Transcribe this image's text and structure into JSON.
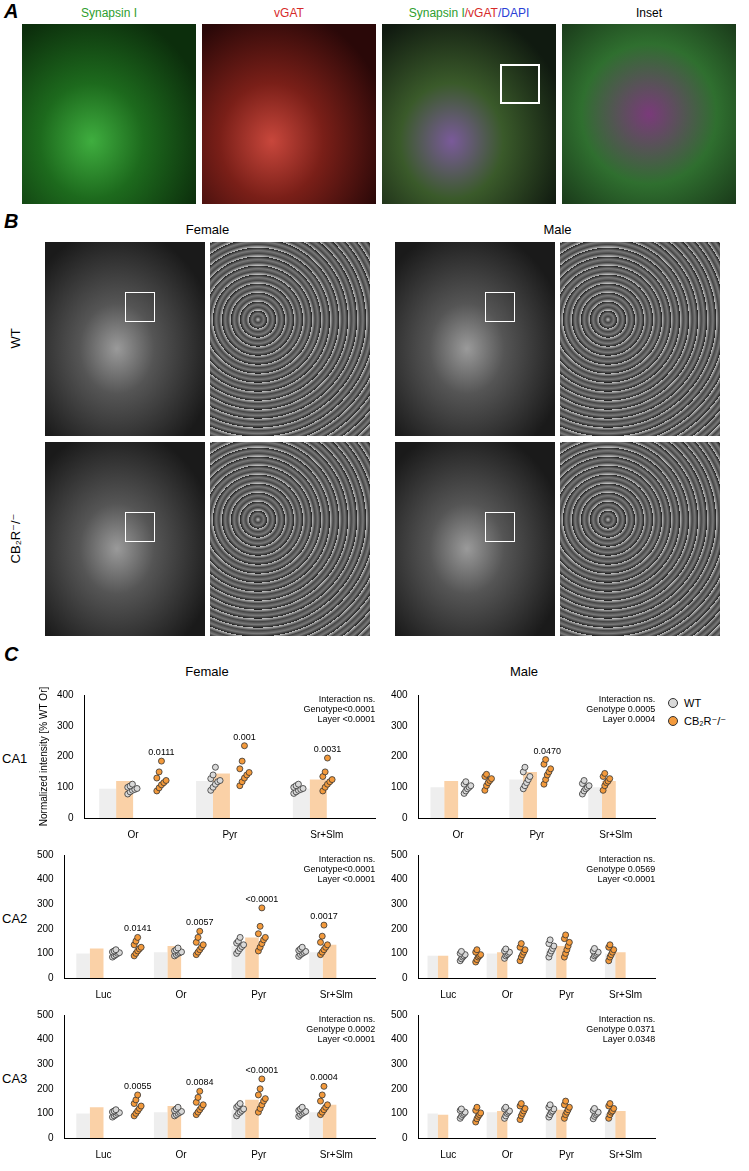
{
  "panel_a": {
    "label": "A",
    "images": [
      [
        {
          "text": "Synapsin I",
          "color": "#2e9e2e"
        }
      ],
      [
        {
          "text": "vGAT",
          "color": "#d62a2a"
        }
      ],
      [
        {
          "text": "Synapsin I",
          "color": "#2e9e2e"
        },
        {
          "text": "/vGAT",
          "color": "#d62a2a"
        },
        {
          "text": "/DAPI",
          "color": "#2a3fd6"
        }
      ],
      [
        {
          "text": "Inset",
          "color": "#000000"
        }
      ]
    ]
  },
  "panel_b": {
    "label": "B",
    "columns": [
      "Female",
      "Male"
    ],
    "rows": [
      "WT",
      "CB₂R⁻/⁻"
    ]
  },
  "panel_c": {
    "label": "C",
    "columns": [
      "Female",
      "Male"
    ],
    "rows": [
      "CA1",
      "CA2",
      "CA3"
    ],
    "y_label": "Normalized intensity [% WT Or]"
  },
  "chart_data": [
    {
      "type": "bar",
      "categories": [
        "Or",
        "Pyr",
        "Sr+Slm"
      ],
      "ylim": [
        0,
        400
      ],
      "yticks": [
        0,
        100,
        200,
        300,
        400
      ],
      "grid": false,
      "annotations": [
        "Interaction ns.",
        "Genotype<0.0001",
        "Layer <0.0001"
      ],
      "p_values": [
        "0.0111",
        "0.001",
        "0.0031"
      ],
      "series": [
        {
          "name": "WT",
          "color": "#d9d9d9",
          "marker": "circle",
          "values": [
            95,
            120,
            95
          ],
          "points": [
            [
              78,
              85,
              90,
              93,
              96,
              100,
              104,
              110
            ],
            [
              90,
              100,
              110,
              118,
              122,
              128,
              140,
              165
            ],
            [
              80,
              85,
              90,
              93,
              96,
              100,
              105,
              110
            ]
          ]
        },
        {
          "name": "CB₂R⁻/⁻",
          "color": "#f39a3c",
          "marker": "circle",
          "values": [
            120,
            145,
            125
          ],
          "points": [
            [
              88,
              98,
              108,
              115,
              122,
              130,
              150,
              185
            ],
            [
              105,
              118,
              130,
              140,
              148,
              160,
              185,
              235
            ],
            [
              88,
              100,
              110,
              118,
              125,
              135,
              150,
              195
            ]
          ]
        }
      ]
    },
    {
      "type": "bar",
      "categories": [
        "Or",
        "Pyr",
        "Sr+Slm"
      ],
      "ylim": [
        0,
        400
      ],
      "yticks": [
        0,
        100,
        200,
        300,
        400
      ],
      "grid": false,
      "legend": "right",
      "annotations": [
        "Interaction ns.",
        "Genotype 0.0005",
        "Layer 0.0004"
      ],
      "p_values": [
        null,
        "0.0470",
        null
      ],
      "series": [
        {
          "name": "WT",
          "color": "#d9d9d9",
          "marker": "circle",
          "values": [
            100,
            125,
            100
          ],
          "points": [
            [
              80,
              88,
              95,
              100,
              105,
              110,
              118
            ],
            [
              95,
              105,
              115,
              125,
              135,
              150,
              165
            ],
            [
              78,
              88,
              95,
              100,
              105,
              112,
              122
            ]
          ]
        },
        {
          "name": "CB₂R⁻/⁻",
          "color": "#f39a3c",
          "marker": "circle",
          "values": [
            120,
            150,
            120
          ],
          "points": [
            [
              90,
              105,
              115,
              122,
              128,
              135,
              142
            ],
            [
              110,
              125,
              140,
              150,
              160,
              175,
              190
            ],
            [
              90,
              105,
              115,
              120,
              128,
              135,
              145
            ]
          ]
        }
      ]
    },
    {
      "type": "bar",
      "categories": [
        "Luc",
        "Or",
        "Pyr",
        "Sr+Slm"
      ],
      "ylim": [
        0,
        500
      ],
      "yticks": [
        0,
        100,
        200,
        300,
        400,
        500
      ],
      "grid": false,
      "annotations": [
        "Interaction ns.",
        "Genotype<0.0001",
        "Layer <0.0001"
      ],
      "p_values": [
        "0.0141",
        "0.0057",
        "<0.0001",
        "0.0017"
      ],
      "series": [
        {
          "name": "WT",
          "color": "#d9d9d9",
          "marker": "circle",
          "values": [
            100,
            105,
            130,
            105
          ],
          "points": [
            [
              85,
              90,
              95,
              100,
              103,
              106,
              110,
              115
            ],
            [
              90,
              95,
              100,
              103,
              106,
              110,
              115,
              122
            ],
            [
              100,
              110,
              120,
              128,
              135,
              142,
              150,
              165
            ],
            [
              88,
              95,
              100,
              104,
              108,
              112,
              118,
              125
            ]
          ]
        },
        {
          "name": "CB₂R⁻/⁻",
          "color": "#f39a3c",
          "marker": "circle",
          "values": [
            120,
            130,
            165,
            135
          ],
          "points": [
            [
              90,
              100,
              110,
              118,
              125,
              135,
              150,
              165
            ],
            [
              95,
              105,
              115,
              125,
              135,
              145,
              165,
              190
            ],
            [
              110,
              125,
              140,
              155,
              165,
              180,
              210,
              285
            ],
            [
              95,
              105,
              115,
              125,
              135,
              145,
              170,
              215
            ]
          ]
        }
      ]
    },
    {
      "type": "bar",
      "categories": [
        "Luc",
        "Or",
        "Pyr",
        "Sr+Slm"
      ],
      "ylim": [
        0,
        500
      ],
      "yticks": [
        0,
        100,
        200,
        300,
        400,
        500
      ],
      "grid": false,
      "annotations": [
        "Interaction ns.",
        "Genotype 0.0569",
        "Layer <0.0001"
      ],
      "p_values": [
        null,
        null,
        null,
        null
      ],
      "series": [
        {
          "name": "WT",
          "color": "#d9d9d9",
          "marker": "circle",
          "values": [
            90,
            100,
            120,
            100
          ],
          "points": [
            [
              70,
              78,
              85,
              90,
              95,
              100,
              108
            ],
            [
              80,
              90,
              95,
              100,
              105,
              110,
              118
            ],
            [
              85,
              100,
              110,
              120,
              130,
              140,
              155
            ],
            [
              80,
              90,
              95,
              100,
              105,
              110,
              120
            ]
          ]
        },
        {
          "name": "CB₂R⁻/⁻",
          "color": "#f39a3c",
          "marker": "circle",
          "values": [
            90,
            105,
            130,
            105
          ],
          "points": [
            [
              65,
              75,
              85,
              90,
              95,
              105,
              115
            ],
            [
              70,
              85,
              95,
              105,
              115,
              125,
              140
            ],
            [
              85,
              100,
              115,
              130,
              145,
              160,
              175
            ],
            [
              70,
              85,
              95,
              105,
              115,
              125,
              135
            ]
          ]
        }
      ]
    },
    {
      "type": "bar",
      "categories": [
        "Luc",
        "Or",
        "Pyr",
        "Sr+Slm"
      ],
      "ylim": [
        0,
        500
      ],
      "yticks": [
        0,
        100,
        200,
        300,
        400,
        500
      ],
      "grid": false,
      "annotations": [
        "Interaction ns.",
        "Genotype 0.0002",
        "Layer <0.0001"
      ],
      "p_values": [
        "0.0055",
        "0.0084",
        "<0.0001",
        "0.0004"
      ],
      "series": [
        {
          "name": "WT",
          "color": "#d9d9d9",
          "marker": "circle",
          "values": [
            100,
            105,
            115,
            105
          ],
          "points": [
            [
              85,
              90,
              95,
              100,
              103,
              106,
              110,
              115
            ],
            [
              90,
              95,
              100,
              104,
              108,
              112,
              118,
              125
            ],
            [
              90,
              100,
              105,
              112,
              118,
              125,
              132,
              140
            ],
            [
              88,
              95,
              100,
              104,
              108,
              112,
              118,
              125
            ]
          ]
        },
        {
          "name": "CB₂R⁻/⁻",
          "color": "#f39a3c",
          "marker": "circle",
          "values": [
            125,
            130,
            155,
            135
          ],
          "points": [
            [
              90,
              100,
              110,
              120,
              130,
              140,
              155,
              175
            ],
            [
              95,
              105,
              115,
              125,
              135,
              145,
              165,
              190
            ],
            [
              105,
              120,
              135,
              150,
              160,
              175,
              200,
              240
            ],
            [
              95,
              105,
              115,
              125,
              135,
              150,
              175,
              210
            ]
          ]
        }
      ]
    },
    {
      "type": "bar",
      "categories": [
        "Luc",
        "Or",
        "Pyr",
        "Sr+Slm"
      ],
      "ylim": [
        0,
        500
      ],
      "yticks": [
        0,
        100,
        200,
        300,
        400,
        500
      ],
      "grid": false,
      "annotations": [
        "Interaction ns.",
        "Genotype 0.0371",
        "Layer 0.0348"
      ],
      "p_values": [
        null,
        null,
        null,
        null
      ],
      "series": [
        {
          "name": "WT",
          "color": "#d9d9d9",
          "marker": "circle",
          "values": [
            100,
            105,
            110,
            100
          ],
          "points": [
            [
              80,
              88,
              95,
              100,
              105,
              112,
              118
            ],
            [
              80,
              90,
              100,
              105,
              110,
              118,
              125
            ],
            [
              85,
              95,
              105,
              110,
              118,
              125,
              135
            ],
            [
              78,
              88,
              95,
              100,
              105,
              112,
              120
            ]
          ]
        },
        {
          "name": "CB₂R⁻/⁻",
          "color": "#f39a3c",
          "marker": "circle",
          "values": [
            95,
            110,
            115,
            110
          ],
          "points": [
            [
              65,
              78,
              88,
              95,
              102,
              112,
              125
            ],
            [
              75,
              90,
              100,
              110,
              120,
              130,
              140
            ],
            [
              80,
              95,
              105,
              115,
              125,
              135,
              150
            ],
            [
              80,
              95,
              105,
              110,
              120,
              130,
              140
            ]
          ]
        }
      ]
    }
  ]
}
